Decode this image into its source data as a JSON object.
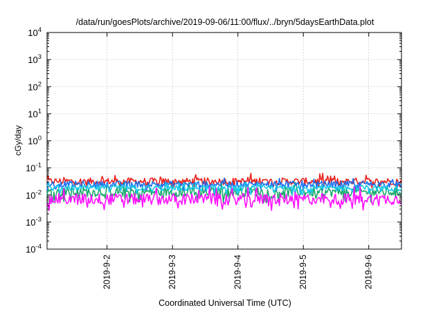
{
  "chart_data": {
    "type": "line",
    "title": "/data/run/goesPlots/archive/2019-09-06/11:00/flux/../bryn/5daysEarthData.plot",
    "xlabel": "Coordinated Universal Time (UTC)",
    "ylabel": "cGy/day",
    "x_range": [
      "2019-09-01T02:00",
      "2019-09-06T12:00"
    ],
    "x_ticks": [
      {
        "value": "2019-09-02",
        "label": "2019-9-2"
      },
      {
        "value": "2019-09-03",
        "label": "2019-9-3"
      },
      {
        "value": "2019-09-04",
        "label": "2019-9-4"
      },
      {
        "value": "2019-09-05",
        "label": "2019-9-5"
      },
      {
        "value": "2019-09-06",
        "label": "2019-9-6"
      }
    ],
    "y_scale": "log",
    "ylim": [
      0.0001,
      10000
    ],
    "y_ticks": [
      {
        "value": 0.0001,
        "base": "10",
        "exp": "-4"
      },
      {
        "value": 0.001,
        "base": "10",
        "exp": "-3"
      },
      {
        "value": 0.01,
        "base": "10",
        "exp": "-2"
      },
      {
        "value": 0.1,
        "base": "10",
        "exp": "-1"
      },
      {
        "value": 1,
        "base": "10",
        "exp": "0"
      },
      {
        "value": 10,
        "base": "10",
        "exp": "1"
      },
      {
        "value": 100,
        "base": "10",
        "exp": "2"
      },
      {
        "value": 1000,
        "base": "10",
        "exp": "3"
      },
      {
        "value": 10000,
        "base": "10",
        "exp": "4"
      }
    ],
    "grid": true,
    "series": [
      {
        "color": "#e8201b",
        "typical": 0.032,
        "low": 0.018,
        "high": 0.065
      },
      {
        "color": "#17a86b",
        "typical": 0.013,
        "low": 0.005,
        "high": 0.03
      },
      {
        "color": "#1e6ef0",
        "typical": 0.025,
        "low": 0.014,
        "high": 0.045
      },
      {
        "color": "#18c8e8",
        "typical": 0.018,
        "low": 0.01,
        "high": 0.03
      },
      {
        "color": "#ff10ff",
        "typical": 0.007,
        "low": 0.0026,
        "high": 0.022
      }
    ]
  }
}
